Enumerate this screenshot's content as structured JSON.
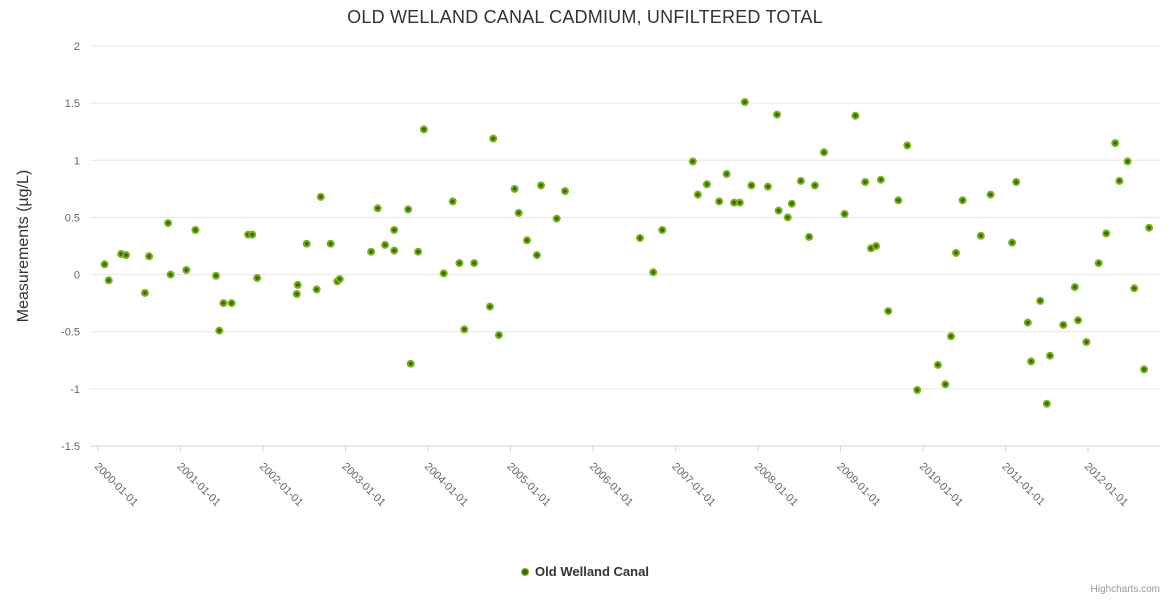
{
  "chart_data": {
    "type": "scatter",
    "title": "OLD WELLAND CANAL CADMIUM, UNFILTERED TOTAL",
    "ylabel": "Measurements (µg/L)",
    "xlabel": "",
    "ylim": [
      -1.5,
      2
    ],
    "yticks": [
      2,
      1.5,
      1,
      0.5,
      0,
      -0.5,
      -1,
      -1.5
    ],
    "xticks": [
      "2000-01-01",
      "2001-01-01",
      "2002-01-01",
      "2003-01-01",
      "2004-01-01",
      "2005-01-01",
      "2006-01-01",
      "2007-01-01",
      "2008-01-01",
      "2009-01-01",
      "2010-01-01",
      "2011-01-01",
      "2012-01-01"
    ],
    "xlim_years": [
      1999.9,
      2012.88
    ],
    "grid": true,
    "legend_position": "bottom-center",
    "credits": "Highcharts.com",
    "colors": {
      "marker_outer": "#7cb41e",
      "marker_inner": "#3a6a08",
      "grid": "#e6e6e6",
      "axis_line": "#ccd6eb",
      "title_text": "#333333",
      "tick_text": "#666666",
      "legend_text": "#333333",
      "credits_text": "#999999"
    },
    "series": [
      {
        "name": "Old Welland Canal",
        "points": [
          [
            2000.08,
            0.09
          ],
          [
            2000.13,
            -0.05
          ],
          [
            2000.28,
            0.18
          ],
          [
            2000.34,
            0.17
          ],
          [
            2000.57,
            -0.16
          ],
          [
            2000.62,
            0.16
          ],
          [
            2000.85,
            0.45
          ],
          [
            2000.88,
            0.0
          ],
          [
            2001.07,
            0.04
          ],
          [
            2001.18,
            0.39
          ],
          [
            2001.43,
            -0.01
          ],
          [
            2001.47,
            -0.49
          ],
          [
            2001.52,
            -0.25
          ],
          [
            2001.62,
            -0.25
          ],
          [
            2001.82,
            0.35
          ],
          [
            2001.87,
            0.35
          ],
          [
            2001.93,
            -0.03
          ],
          [
            2002.41,
            -0.17
          ],
          [
            2002.42,
            -0.09
          ],
          [
            2002.53,
            0.27
          ],
          [
            2002.65,
            -0.13
          ],
          [
            2002.7,
            0.68
          ],
          [
            2002.82,
            0.27
          ],
          [
            2002.9,
            -0.06
          ],
          [
            2002.93,
            -0.04
          ],
          [
            2003.31,
            0.2
          ],
          [
            2003.39,
            0.58
          ],
          [
            2003.48,
            0.26
          ],
          [
            2003.59,
            0.39
          ],
          [
            2003.59,
            0.21
          ],
          [
            2003.76,
            0.57
          ],
          [
            2003.79,
            -0.78
          ],
          [
            2003.88,
            0.2
          ],
          [
            2003.95,
            1.27
          ],
          [
            2004.19,
            0.01
          ],
          [
            2004.3,
            0.64
          ],
          [
            2004.38,
            0.1
          ],
          [
            2004.44,
            -0.48
          ],
          [
            2004.56,
            0.1
          ],
          [
            2004.75,
            -0.28
          ],
          [
            2004.79,
            1.19
          ],
          [
            2004.86,
            -0.53
          ],
          [
            2005.05,
            0.75
          ],
          [
            2005.1,
            0.54
          ],
          [
            2005.2,
            0.3
          ],
          [
            2005.32,
            0.17
          ],
          [
            2005.37,
            0.78
          ],
          [
            2005.56,
            0.49
          ],
          [
            2005.66,
            0.73
          ],
          [
            2006.57,
            0.32
          ],
          [
            2006.73,
            0.02
          ],
          [
            2006.84,
            0.39
          ],
          [
            2007.21,
            0.99
          ],
          [
            2007.27,
            0.7
          ],
          [
            2007.38,
            0.79
          ],
          [
            2007.53,
            0.64
          ],
          [
            2007.62,
            0.88
          ],
          [
            2007.71,
            0.63
          ],
          [
            2007.78,
            0.63
          ],
          [
            2007.84,
            1.51
          ],
          [
            2007.92,
            0.78
          ],
          [
            2008.12,
            0.77
          ],
          [
            2008.23,
            1.4
          ],
          [
            2008.25,
            0.56
          ],
          [
            2008.36,
            0.5
          ],
          [
            2008.41,
            0.62
          ],
          [
            2008.52,
            0.82
          ],
          [
            2008.62,
            0.33
          ],
          [
            2008.69,
            0.78
          ],
          [
            2008.8,
            1.07
          ],
          [
            2009.05,
            0.53
          ],
          [
            2009.18,
            1.39
          ],
          [
            2009.3,
            0.81
          ],
          [
            2009.37,
            0.23
          ],
          [
            2009.43,
            0.25
          ],
          [
            2009.49,
            0.83
          ],
          [
            2009.58,
            -0.32
          ],
          [
            2009.7,
            0.65
          ],
          [
            2009.81,
            1.13
          ],
          [
            2009.93,
            -1.01
          ],
          [
            2010.18,
            -0.79
          ],
          [
            2010.27,
            -0.96
          ],
          [
            2010.34,
            -0.54
          ],
          [
            2010.4,
            0.19
          ],
          [
            2010.48,
            0.65
          ],
          [
            2010.7,
            0.34
          ],
          [
            2010.82,
            0.7
          ],
          [
            2011.08,
            0.28
          ],
          [
            2011.13,
            0.81
          ],
          [
            2011.27,
            -0.42
          ],
          [
            2011.31,
            -0.76
          ],
          [
            2011.42,
            -0.23
          ],
          [
            2011.5,
            -1.13
          ],
          [
            2011.54,
            -0.71
          ],
          [
            2011.7,
            -0.44
          ],
          [
            2011.84,
            -0.11
          ],
          [
            2011.88,
            -0.4
          ],
          [
            2011.98,
            -0.59
          ],
          [
            2012.13,
            0.1
          ],
          [
            2012.22,
            0.36
          ],
          [
            2012.33,
            1.15
          ],
          [
            2012.38,
            0.82
          ],
          [
            2012.48,
            0.99
          ],
          [
            2012.56,
            -0.12
          ],
          [
            2012.68,
            -0.83
          ],
          [
            2012.74,
            0.41
          ]
        ]
      }
    ]
  }
}
